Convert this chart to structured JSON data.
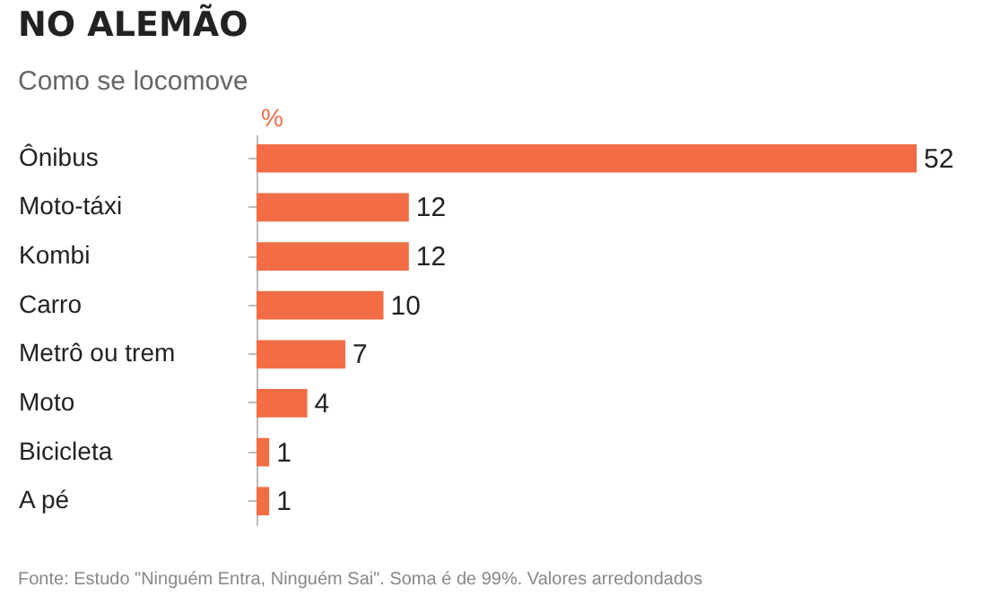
{
  "chart_data": {
    "type": "bar",
    "orientation": "horizontal",
    "title": "NO ALEMÃO",
    "subtitle": "Como se locomove",
    "xlabel": "%",
    "categories": [
      "Ônibus",
      "Moto-táxi",
      "Kombi",
      "Carro",
      "Metrô ou trem",
      "Moto",
      "Bicicleta",
      "A pé"
    ],
    "values": [
      52,
      12,
      12,
      10,
      7,
      4,
      1,
      1
    ],
    "color": "#f26d45",
    "data_labels": true,
    "grid": false,
    "annotations": [
      "Fonte: Estudo \"Ninguém Entra, Ninguém Sai\". Soma é de 99%. Valores arredondados"
    ]
  }
}
